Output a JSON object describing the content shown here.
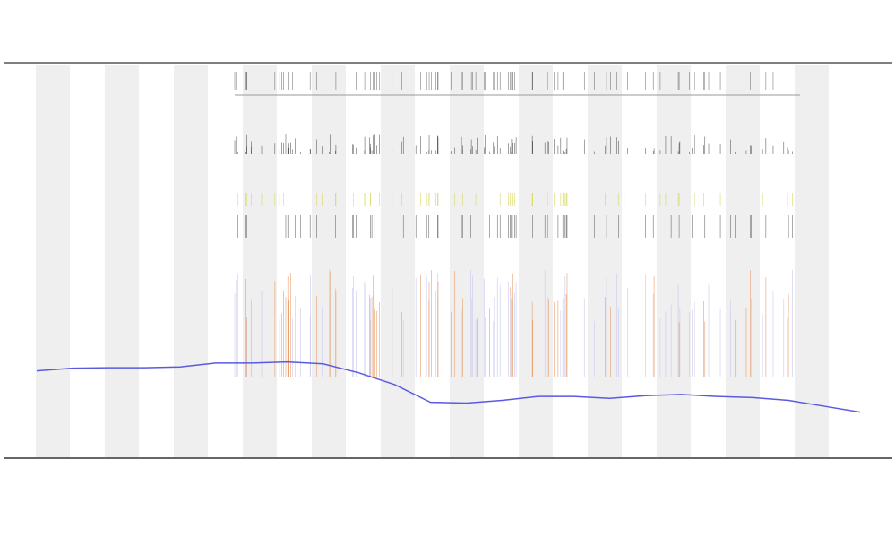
{
  "chart_data": {
    "type": "line",
    "x": [
      0,
      1,
      2,
      3,
      4,
      5,
      6,
      7,
      8,
      9,
      10,
      11,
      12,
      13,
      14,
      15,
      16,
      17,
      18,
      19,
      20,
      21,
      22,
      23
    ],
    "values": [
      22,
      22.7,
      22.8,
      22.8,
      23,
      24,
      24,
      24.3,
      23.8,
      21.5,
      18.5,
      14,
      13.8,
      14.5,
      15.5,
      15.5,
      15,
      15.7,
      16,
      15.5,
      15.2,
      14.5,
      13,
      11.5
    ],
    "color": "#5a5ae0",
    "xlim": [
      -0.2,
      24
    ],
    "ylim": [
      0,
      100
    ]
  }
}
